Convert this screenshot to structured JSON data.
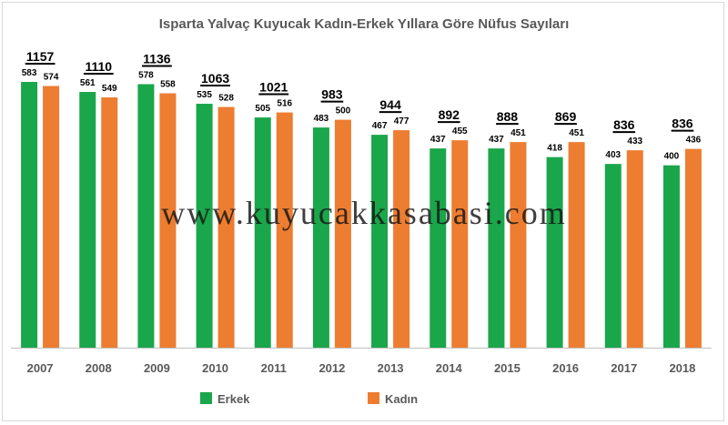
{
  "title": "Isparta Yalvaç Kuyucak Kadın-Erkek Yıllara Göre Nüfus Sayıları",
  "watermark": "www.kuyucakkasabasi.com",
  "colors": {
    "erkek": "#1aa64a",
    "kadin": "#ed7d31",
    "axis": "#bfbfbf"
  },
  "chart_data": {
    "type": "bar",
    "categories": [
      "2007",
      "2008",
      "2009",
      "2010",
      "2011",
      "2012",
      "2013",
      "2014",
      "2015",
      "2016",
      "2017",
      "2018"
    ],
    "series": [
      {
        "name": "Erkek",
        "values": [
          583,
          561,
          578,
          535,
          505,
          483,
          467,
          437,
          437,
          418,
          403,
          400
        ]
      },
      {
        "name": "Kadın",
        "values": [
          574,
          549,
          558,
          528,
          516,
          500,
          477,
          455,
          451,
          451,
          433,
          436
        ]
      }
    ],
    "totals": [
      1157,
      1110,
      1136,
      1063,
      1021,
      983,
      944,
      892,
      888,
      869,
      836,
      836
    ],
    "legend": [
      "Erkek",
      "Kadın"
    ],
    "legend_position": "bottom",
    "ylim": [
      0,
      600
    ],
    "grid": false
  }
}
